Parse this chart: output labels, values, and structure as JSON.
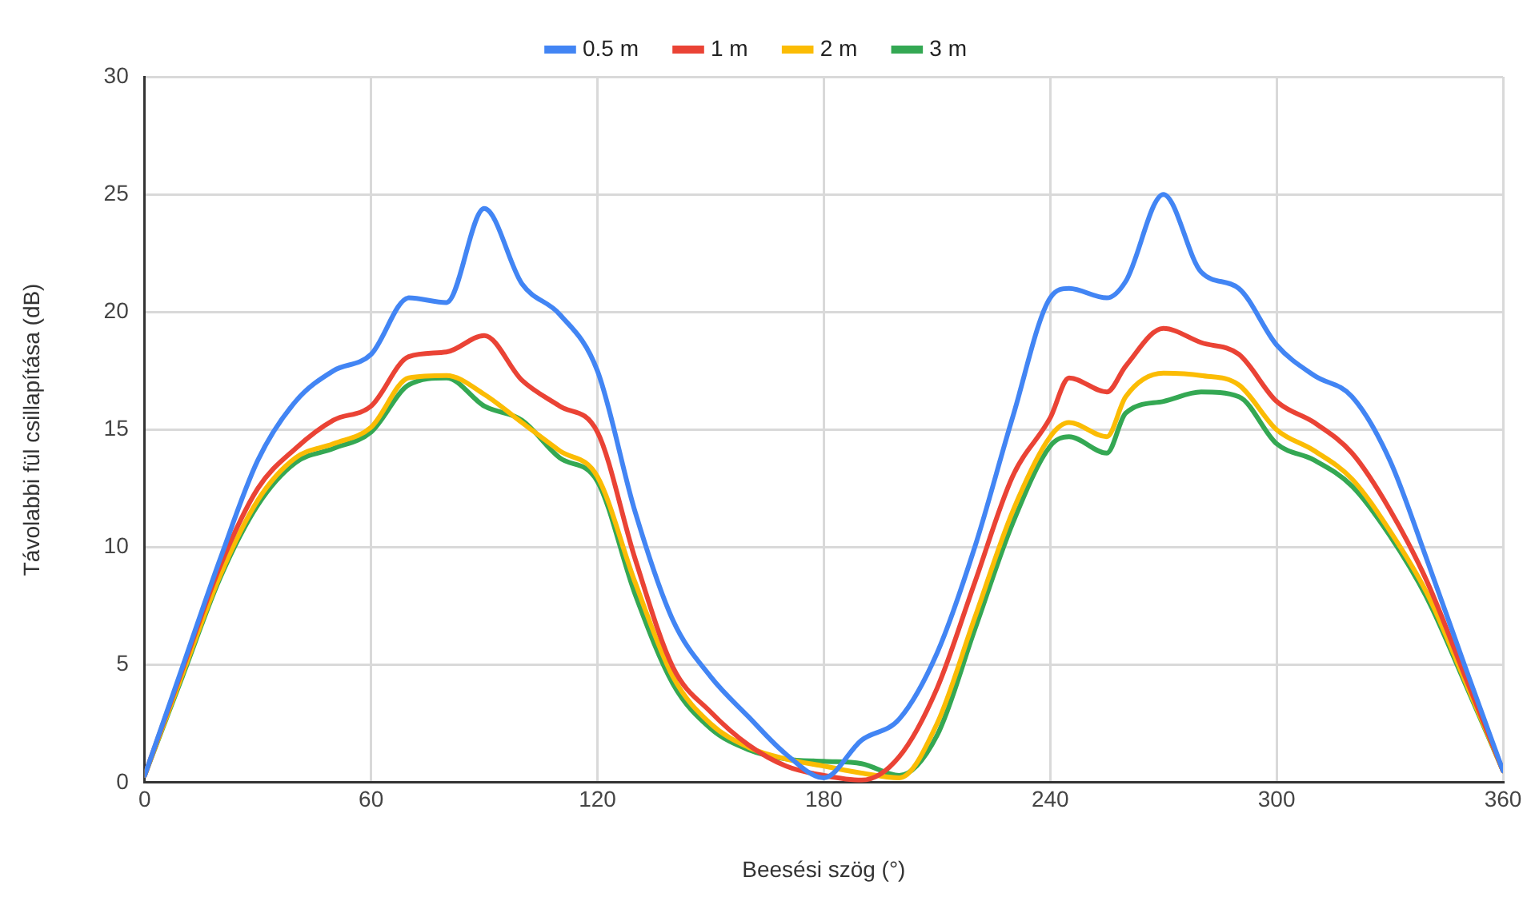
{
  "chart_data": {
    "type": "line",
    "xlabel": "Beesési szög (°)",
    "ylabel": "Távolabbi fül csillapítása (dB)",
    "x": [
      0,
      10,
      20,
      30,
      40,
      50,
      60,
      70,
      80,
      90,
      100,
      110,
      120,
      130,
      140,
      150,
      160,
      170,
      180,
      190,
      200,
      210,
      220,
      230,
      240,
      245,
      255,
      260,
      270,
      280,
      290,
      300,
      310,
      320,
      330,
      340,
      350,
      360
    ],
    "series": [
      {
        "name": "0.5 m",
        "color": "#4285f4",
        "values": [
          0.3,
          4.9,
          9.5,
          13.7,
          16.2,
          17.5,
          18.2,
          20.6,
          20.4,
          24.4,
          21.2,
          19.9,
          17.5,
          11.5,
          6.9,
          4.5,
          2.8,
          1.2,
          0.2,
          1.8,
          2.7,
          5.5,
          10,
          15.5,
          20.6,
          21.0,
          20.6,
          21.3,
          25.0,
          21.7,
          21.0,
          18.6,
          17.3,
          16.4,
          13.7,
          9.4,
          4.9,
          0.5
        ]
      },
      {
        "name": "1 m",
        "color": "#ea4335",
        "values": [
          0.3,
          4.8,
          9.2,
          12.5,
          14.2,
          15.4,
          16.0,
          18.1,
          18.3,
          19.0,
          17.1,
          16.0,
          14.9,
          9.5,
          4.9,
          3.0,
          1.6,
          0.7,
          0.3,
          0.1,
          1.1,
          4.0,
          8.5,
          13,
          15.5,
          17.2,
          16.6,
          17.7,
          19.3,
          18.7,
          18.2,
          16.2,
          15.3,
          14.0,
          11.6,
          8.5,
          4.5,
          0.5
        ]
      },
      {
        "name": "2 m",
        "color": "#fbbc04",
        "values": [
          0.3,
          4.6,
          8.8,
          12,
          13.8,
          14.4,
          15.1,
          17.2,
          17.3,
          16.5,
          15.3,
          14.1,
          13,
          8.5,
          4.5,
          2.5,
          1.5,
          1.0,
          0.7,
          0.4,
          0.2,
          2.5,
          7,
          11.5,
          14.7,
          15.3,
          14.7,
          16.4,
          17.4,
          17.3,
          16.9,
          15.0,
          14.1,
          12.9,
          10.7,
          8,
          4.3,
          0.5
        ]
      },
      {
        "name": "3 m",
        "color": "#34a853",
        "values": [
          0.3,
          4.5,
          8.7,
          11.8,
          13.6,
          14.2,
          14.9,
          16.9,
          17.2,
          16.0,
          15.4,
          13.8,
          12.8,
          8,
          4.2,
          2.3,
          1.4,
          1.0,
          0.9,
          0.8,
          0.3,
          2,
          6.5,
          11,
          14.3,
          14.7,
          14.0,
          15.7,
          16.2,
          16.6,
          16.4,
          14.4,
          13.7,
          12.6,
          10.5,
          7.8,
          4.2,
          0.5
        ]
      }
    ],
    "xlim": [
      0,
      360
    ],
    "xticks": [
      0,
      60,
      120,
      180,
      240,
      300,
      360
    ],
    "ylim": [
      0,
      30
    ],
    "yticks": [
      0,
      5,
      10,
      15,
      20,
      25,
      30
    ],
    "grid": true,
    "legend": "top",
    "marker": "none",
    "line_style": "solid"
  }
}
